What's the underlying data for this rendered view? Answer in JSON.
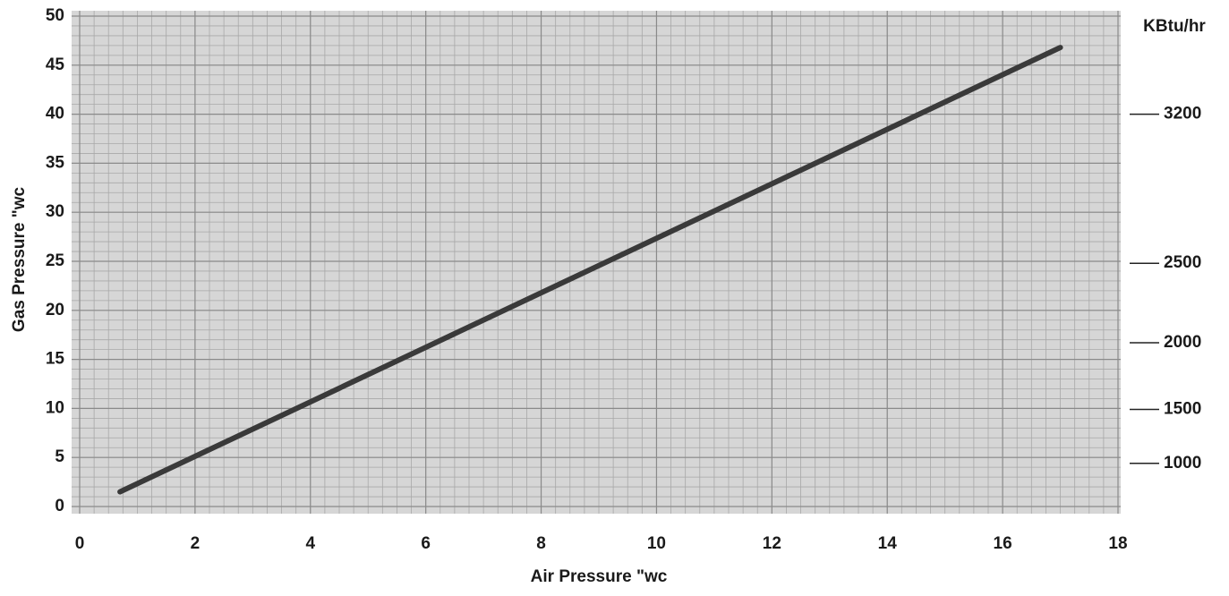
{
  "chart_data": {
    "type": "line",
    "x_label": "Air Pressure \"wc",
    "y_label": "Gas Pressure \"wc",
    "y2_label": "KBtu/hr",
    "x": [
      0.7,
      17
    ],
    "series": [
      {
        "color": "#3a3a3a",
        "values": [
          1.5,
          46.8
        ]
      }
    ],
    "xlim": [
      0,
      18
    ],
    "ylim": [
      0,
      50
    ],
    "xticks": [
      0,
      2,
      4,
      6,
      8,
      10,
      12,
      14,
      16,
      18
    ],
    "yticks": [
      0,
      5,
      10,
      15,
      20,
      25,
      30,
      35,
      40,
      45,
      50
    ],
    "kbtu_scale": [
      {
        "kbtu": 3200,
        "gas_pressure": 40
      },
      {
        "kbtu": 2500,
        "gas_pressure": 24.8
      },
      {
        "kbtu": 2000,
        "gas_pressure": 16.7
      },
      {
        "kbtu": 1500,
        "gas_pressure": 9.9
      },
      {
        "kbtu": 1000,
        "gas_pressure": 4.4
      }
    ],
    "grid": {
      "x_step": 0.25,
      "y_step": 1
    }
  }
}
